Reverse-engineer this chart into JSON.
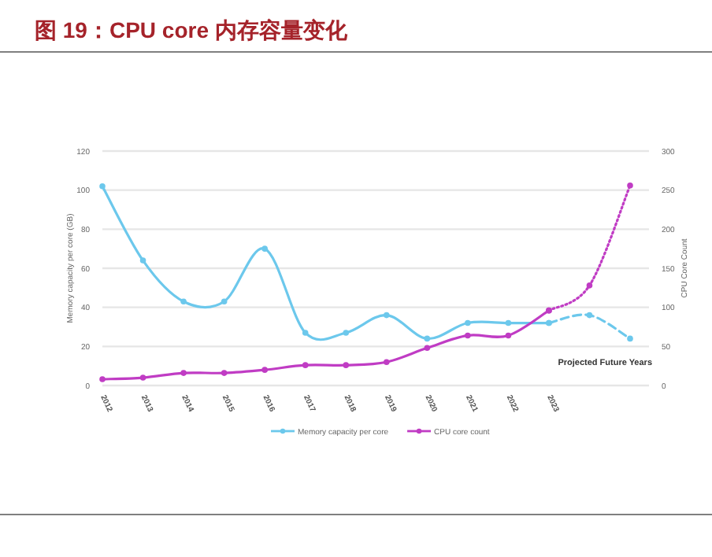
{
  "chart_data": {
    "type": "line",
    "title": "图 19：CPU core 内存容量变化",
    "categories": [
      "2012",
      "2013",
      "2014",
      "2015",
      "2016",
      "2017",
      "2018",
      "2019",
      "2020",
      "2021",
      "2022",
      "2023",
      null,
      null
    ],
    "series": [
      {
        "name": "Memory capacity per core",
        "color": "#6cc8ec",
        "values": [
          102,
          64,
          43,
          43,
          70,
          27,
          27,
          36,
          24,
          32,
          32,
          32,
          null,
          null
        ]
      },
      {
        "name": "CPU core count",
        "color": "#c03cc4",
        "axis": "y2",
        "values": [
          8,
          10,
          16,
          16,
          20,
          26,
          26,
          30,
          48,
          64,
          64,
          96,
          null,
          null
        ]
      },
      {
        "color": "#6cc8ec",
        "line_style": "dashed",
        "values": [
          null,
          null,
          null,
          null,
          null,
          null,
          null,
          null,
          null,
          null,
          null,
          32,
          36,
          24
        ]
      },
      {
        "color": "#c03cc4",
        "axis": "y2",
        "line_style": "dotted",
        "values": [
          null,
          null,
          null,
          null,
          null,
          null,
          null,
          null,
          null,
          null,
          null,
          96,
          128,
          256
        ]
      }
    ],
    "ylabel": "Memory capacity per core (GB)",
    "y2label": "CPU Core Count",
    "ylim": [
      0,
      120
    ],
    "yticks": [
      0,
      20,
      40,
      60,
      80,
      100,
      120
    ],
    "y2lim": [
      0,
      300
    ],
    "y2ticks": [
      0,
      50,
      100,
      150,
      200,
      250,
      300
    ],
    "grid": "y",
    "legend": "bottom",
    "marker": "circle",
    "annotations": [
      "Projected Future Years"
    ]
  }
}
